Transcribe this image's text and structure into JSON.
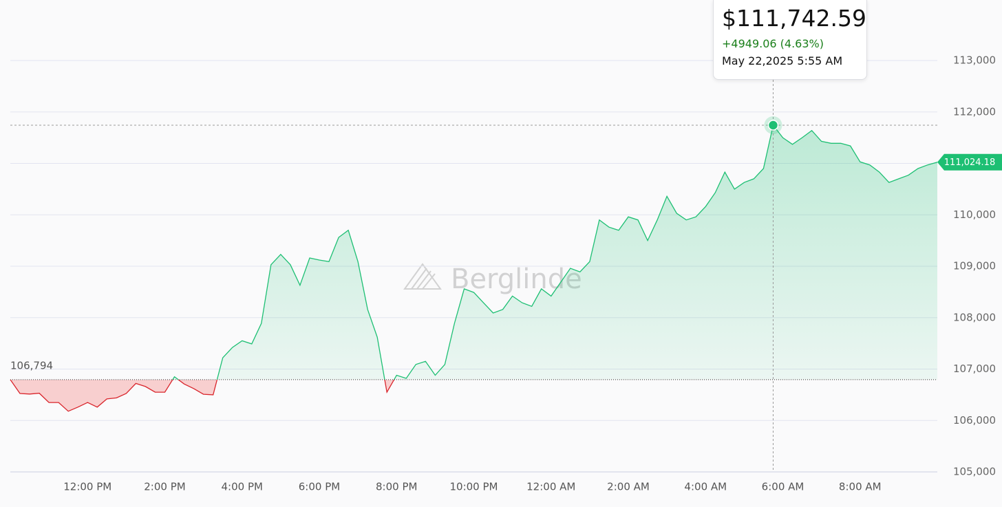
{
  "chart_data": {
    "type": "line",
    "categories": [
      null,
      null,
      null,
      null,
      null,
      null,
      null,
      null,
      "12:00 PM",
      null,
      null,
      null,
      null,
      null,
      null,
      null,
      "2:00 PM",
      null,
      null,
      null,
      null,
      null,
      null,
      null,
      "4:00 PM",
      null,
      null,
      null,
      null,
      null,
      null,
      null,
      "6:00 PM",
      null,
      null,
      null,
      null,
      null,
      null,
      null,
      "8:00 PM",
      null,
      null,
      null,
      null,
      null,
      null,
      null,
      "10:00 PM",
      null,
      null,
      null,
      null,
      null,
      null,
      null,
      "12:00 AM",
      null,
      null,
      null,
      null,
      null,
      null,
      null,
      "2:00 AM",
      null,
      null,
      null,
      null,
      null,
      null,
      null,
      "4:00 AM",
      null,
      null,
      null,
      null,
      null,
      null,
      null,
      "6:00 AM",
      null,
      null,
      null,
      null,
      null,
      null,
      null,
      "8:00 AM",
      null,
      null,
      null,
      null,
      null,
      null,
      null,
      null
    ],
    "values": [
      106794,
      106525,
      106515,
      106530,
      106350,
      106350,
      106180,
      106260,
      106350,
      106260,
      106420,
      106440,
      106525,
      106720,
      106660,
      106550,
      106550,
      106850,
      106710,
      106620,
      106510,
      106500,
      107220,
      107420,
      107550,
      107490,
      107890,
      109030,
      109230,
      109030,
      108630,
      109160,
      109120,
      109090,
      109560,
      109700,
      109090,
      108160,
      107620,
      106550,
      106880,
      106820,
      107090,
      107150,
      106880,
      107090,
      107890,
      108560,
      108490,
      108290,
      108090,
      108160,
      108420,
      108290,
      108220,
      108560,
      108420,
      108690,
      108960,
      108890,
      109090,
      109900,
      109760,
      109700,
      109960,
      109900,
      109500,
      109900,
      110360,
      110030,
      109900,
      109960,
      110160,
      110430,
      110830,
      110500,
      110630,
      110700,
      110900,
      111742.59,
      111500,
      111370,
      111500,
      111640,
      111430,
      111390,
      111390,
      111340,
      111030,
      110970,
      110830,
      110630,
      110700,
      110770,
      110900,
      110970,
      111024.18
    ],
    "up_color": "#1dbf73",
    "down_color": "#d9242b",
    "baseline": {
      "value": 106794,
      "label": "106,794"
    },
    "current_price": {
      "value": 111024.18,
      "label": "111,024.18"
    },
    "highlight_value": 111742.59,
    "tooltip": {
      "price": "$111,742.59",
      "change": "+4949.06 (4.63%)",
      "date": "May 22,2025 5:55 AM"
    },
    "watermark": "Berglinde",
    "ylim": [
      105000,
      113000
    ],
    "yticks": [
      {
        "value": 105000,
        "label": "105,000"
      },
      {
        "value": 106000,
        "label": "106,000"
      },
      {
        "value": 107000,
        "label": "107,000"
      },
      {
        "value": 108000,
        "label": "108,000"
      },
      {
        "value": 109000,
        "label": "109,000"
      },
      {
        "value": 110000,
        "label": "110,000"
      },
      {
        "value": 111000,
        "label": "111,000"
      },
      {
        "value": 112000,
        "label": "112,000"
      },
      {
        "value": 113000,
        "label": "113,000"
      }
    ],
    "grid": true
  }
}
